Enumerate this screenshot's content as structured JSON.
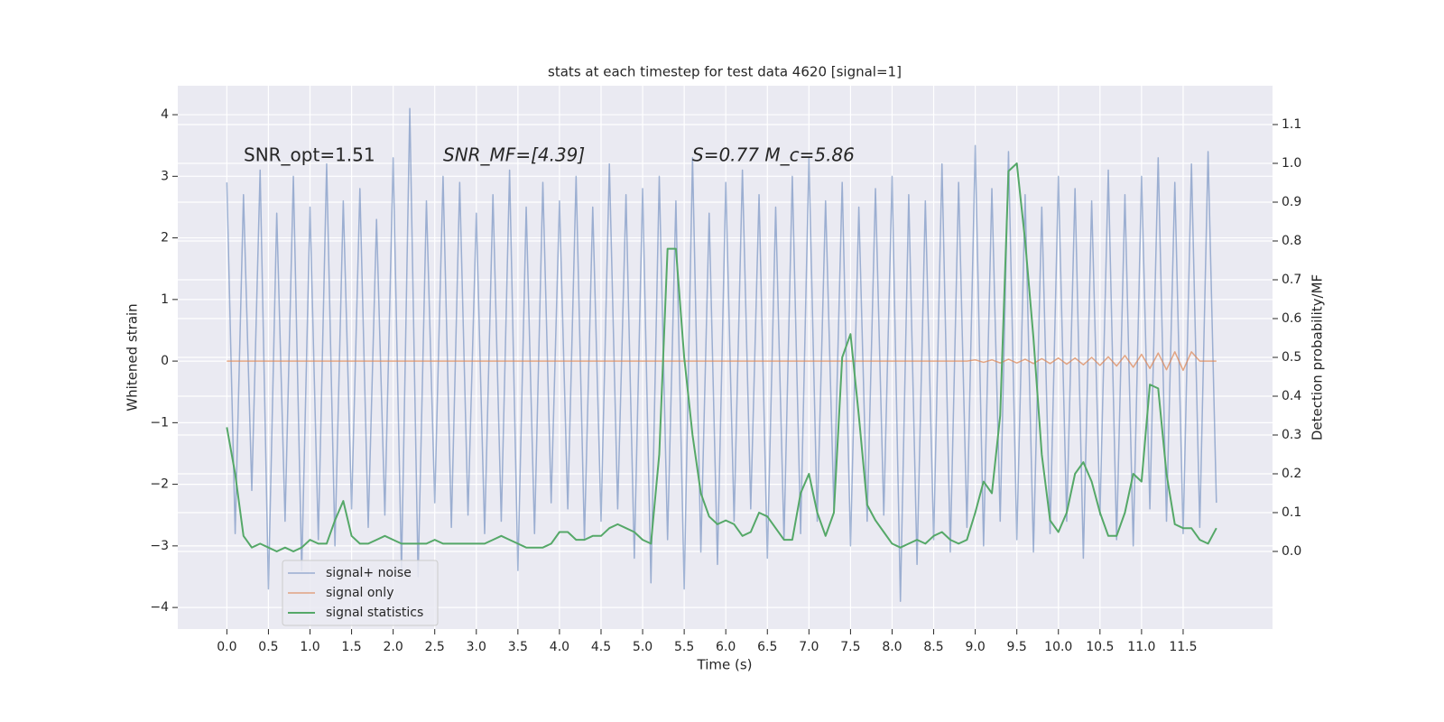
{
  "chart_data": {
    "type": "line",
    "title": "stats at each timestep for test data 4620 [signal=1]",
    "xlabel": "Time (s)",
    "ylabel": "Whitened strain",
    "y2label": "Detection probability/MF",
    "annotations": [
      "SNR_opt=1.51",
      "SNR_MF=[4.39]",
      "S=0.77   M_c=5.86"
    ],
    "grid": true,
    "legend": "lower left",
    "xlim": [
      -0.59,
      12.575
    ],
    "ylim": [
      -4.35,
      4.47
    ],
    "y2lim": [
      -0.2,
      1.2
    ],
    "xticks": [
      {
        "value": 0,
        "label": "0.0"
      },
      0.5,
      {
        "value": 1,
        "label": "1.0"
      },
      1.5,
      {
        "value": 2,
        "label": "2.0"
      },
      2.5,
      {
        "value": 3,
        "label": "3.0"
      },
      3.5,
      {
        "value": 4,
        "label": "4.0"
      },
      4.5,
      {
        "value": 5,
        "label": "5.0"
      },
      5.5,
      {
        "value": 6,
        "label": "6.0"
      },
      6.5,
      {
        "value": 7,
        "label": "7.0"
      },
      7.5,
      {
        "value": 8,
        "label": "8.0"
      },
      8.5,
      {
        "value": 9,
        "label": "9.0"
      },
      9.5,
      {
        "value": 10,
        "label": "10.0"
      },
      10.5,
      {
        "value": 11,
        "label": "11.0"
      },
      11.5
    ],
    "yticks": [
      {
        "value": -4,
        "label": "−4"
      },
      {
        "value": -3,
        "label": "−3"
      },
      {
        "value": -2,
        "label": "−2"
      },
      {
        "value": -1,
        "label": "−1"
      },
      0,
      1,
      2,
      3,
      4
    ],
    "y2ticks": [
      {
        "value": 0,
        "label": "0.0"
      },
      0.1,
      0.2,
      0.3,
      0.4,
      0.5,
      0.6,
      0.7,
      0.8,
      0.9,
      {
        "value": 1,
        "label": "1.0"
      },
      1.1
    ],
    "x": [
      0,
      0.1,
      0.2,
      0.3,
      0.4,
      0.5,
      0.6,
      0.7,
      0.8,
      0.9,
      1,
      1.1,
      1.2,
      1.3,
      1.4,
      1.5,
      1.6,
      1.7,
      1.8,
      1.9,
      2,
      2.1,
      2.2,
      2.3,
      2.4,
      2.5,
      2.6,
      2.7,
      2.8,
      2.9,
      3,
      3.1,
      3.2,
      3.3,
      3.4,
      3.5,
      3.6,
      3.7,
      3.8,
      3.9,
      4,
      4.1,
      4.2,
      4.3,
      4.4,
      4.5,
      4.6,
      4.7,
      4.8,
      4.9,
      5,
      5.1,
      5.2,
      5.3,
      5.4,
      5.5,
      5.6,
      5.7,
      5.8,
      5.9,
      6,
      6.1,
      6.2,
      6.3,
      6.4,
      6.5,
      6.6,
      6.7,
      6.8,
      6.9,
      7,
      7.1,
      7.2,
      7.3,
      7.4,
      7.5,
      7.6,
      7.7,
      7.8,
      7.9,
      8,
      8.1,
      8.2,
      8.3,
      8.4,
      8.5,
      8.6,
      8.7,
      8.8,
      8.9,
      9,
      9.1,
      9.2,
      9.3,
      9.4,
      9.5,
      9.6,
      9.7,
      9.8,
      9.9,
      10,
      10.1,
      10.2,
      10.3,
      10.4,
      10.5,
      10.6,
      10.7,
      10.8,
      10.9,
      11,
      11.1,
      11.2,
      11.3,
      11.4,
      11.5,
      11.6,
      11.7,
      11.8,
      11.9
    ],
    "series": [
      {
        "name": "signal+ noise",
        "color": "#4c72b0",
        "axis": "y",
        "values": [
          2.9,
          -2.8,
          2.7,
          -2.1,
          3.1,
          -3.7,
          2.4,
          -2.6,
          3.0,
          -3.4,
          2.5,
          -2.9,
          3.2,
          -3.0,
          2.6,
          -2.4,
          2.8,
          -2.7,
          2.3,
          -2.5,
          3.3,
          -3.4,
          4.1,
          -3.5,
          2.6,
          -2.3,
          3.0,
          -2.7,
          2.9,
          -2.5,
          2.4,
          -2.8,
          2.7,
          -2.6,
          3.1,
          -3.4,
          2.5,
          -2.8,
          2.9,
          -2.3,
          2.6,
          -2.4,
          3.0,
          -2.9,
          2.5,
          -2.6,
          3.2,
          -2.4,
          2.7,
          -3.2,
          2.8,
          -3.6,
          3.0,
          -2.9,
          2.6,
          -3.7,
          3.3,
          -3.1,
          2.4,
          -3.3,
          2.9,
          -2.6,
          3.1,
          -2.4,
          2.7,
          -3.2,
          2.5,
          -2.9,
          3.0,
          -2.8,
          3.3,
          -2.6,
          2.6,
          -2.4,
          2.9,
          -3.0,
          2.5,
          -2.6,
          2.8,
          -2.5,
          3.0,
          -3.9,
          2.7,
          -3.3,
          2.6,
          -2.9,
          3.2,
          -3.1,
          2.9,
          -2.7,
          3.5,
          -3.0,
          2.8,
          -2.6,
          3.4,
          -2.9,
          2.7,
          -3.1,
          2.5,
          -2.8,
          3.0,
          -2.6,
          2.8,
          -3.2,
          2.6,
          -2.5,
          3.1,
          -2.9,
          2.7,
          -3.0,
          3.0,
          -2.4,
          3.3,
          -2.6,
          2.9,
          -2.8,
          3.2,
          -2.7,
          3.4,
          -2.3
        ]
      },
      {
        "name": "signal only",
        "color": "#dd8452",
        "axis": "y",
        "values": [
          0,
          0,
          0,
          0,
          0,
          0,
          0,
          0,
          0,
          0,
          0,
          0,
          0,
          0,
          0,
          0,
          0,
          0,
          0,
          0,
          0,
          0,
          0,
          0,
          0,
          0,
          0,
          0,
          0,
          0,
          0,
          0,
          0,
          0,
          0,
          0,
          0,
          0,
          0,
          0,
          0,
          0,
          0,
          0,
          0,
          0,
          0,
          0,
          0,
          0,
          0,
          0,
          0,
          0,
          0,
          0,
          0,
          0,
          0,
          0,
          0,
          0,
          0,
          0,
          0,
          0,
          0,
          0,
          0,
          0,
          0,
          0,
          0,
          0,
          0,
          0,
          0,
          0,
          0,
          0,
          0,
          0,
          0,
          0,
          0,
          0,
          0,
          0,
          0,
          0,
          0.02,
          -0.02,
          0.02,
          -0.03,
          0.03,
          -0.03,
          0.03,
          -0.04,
          0.04,
          -0.04,
          0.05,
          -0.05,
          0.05,
          -0.06,
          0.06,
          -0.07,
          0.07,
          -0.08,
          0.09,
          -0.1,
          0.11,
          -0.12,
          0.13,
          -0.14,
          0.15,
          -0.15,
          0.15,
          0,
          0,
          0
        ]
      },
      {
        "name": "signal statistics",
        "color": "#55a868",
        "axis": "y2",
        "values": [
          0.32,
          0.2,
          0.04,
          0.01,
          0.02,
          0.01,
          0.0,
          0.01,
          0.0,
          0.01,
          0.03,
          0.02,
          0.02,
          0.08,
          0.13,
          0.04,
          0.02,
          0.02,
          0.03,
          0.04,
          0.03,
          0.02,
          0.02,
          0.02,
          0.02,
          0.03,
          0.02,
          0.02,
          0.02,
          0.02,
          0.02,
          0.02,
          0.03,
          0.04,
          0.03,
          0.02,
          0.01,
          0.01,
          0.01,
          0.02,
          0.05,
          0.05,
          0.03,
          0.03,
          0.04,
          0.04,
          0.06,
          0.07,
          0.06,
          0.05,
          0.03,
          0.02,
          0.25,
          0.78,
          0.78,
          0.5,
          0.3,
          0.15,
          0.09,
          0.07,
          0.08,
          0.07,
          0.04,
          0.05,
          0.1,
          0.09,
          0.06,
          0.03,
          0.03,
          0.15,
          0.2,
          0.1,
          0.04,
          0.1,
          0.5,
          0.56,
          0.35,
          0.12,
          0.08,
          0.05,
          0.02,
          0.01,
          0.02,
          0.03,
          0.02,
          0.04,
          0.05,
          0.03,
          0.02,
          0.03,
          0.1,
          0.18,
          0.15,
          0.35,
          0.98,
          1.0,
          0.8,
          0.55,
          0.25,
          0.08,
          0.05,
          0.1,
          0.2,
          0.23,
          0.18,
          0.1,
          0.04,
          0.04,
          0.1,
          0.2,
          0.18,
          0.43,
          0.42,
          0.2,
          0.07,
          0.06,
          0.06,
          0.03,
          0.02,
          0.06
        ]
      }
    ]
  }
}
